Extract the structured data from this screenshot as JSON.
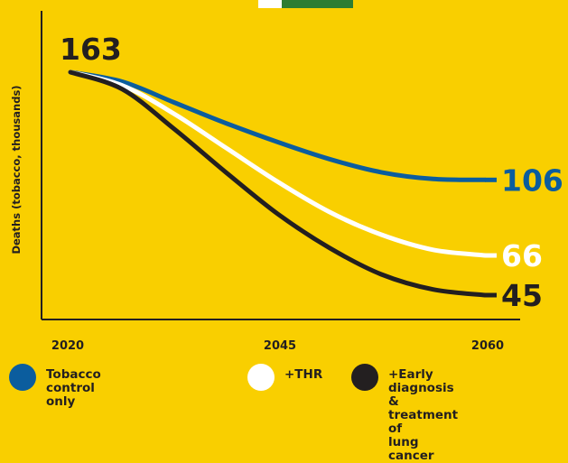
{
  "colors": {
    "background": "#F9CF00",
    "tobacco_control": "#0B5D9E",
    "thr": "#FFFFFF",
    "early_diagnosis": "#231F20",
    "flag_green": "#2E7D32",
    "flag_white": "#FFFFFF"
  },
  "chart_data": {
    "type": "line",
    "title": "",
    "xlabel": "",
    "ylabel": "Deaths (tobacco, thousands)",
    "x_ticks": [
      "2020",
      "2045",
      "2060"
    ],
    "xlim": [
      2020,
      2060
    ],
    "ylim": [
      0,
      185
    ],
    "grid": false,
    "legend_position": "bottom",
    "start_label": "163",
    "series": [
      {
        "name": "Tobacco control only",
        "color": "#0B5D9E",
        "points": [
          [
            2020,
            163
          ],
          [
            2025,
            158
          ],
          [
            2030,
            147
          ],
          [
            2035,
            136
          ],
          [
            2040,
            126
          ],
          [
            2045,
            117
          ],
          [
            2050,
            110
          ],
          [
            2055,
            106.5
          ],
          [
            2060,
            106
          ]
        ],
        "end_label": "106"
      },
      {
        "name": "+THR",
        "color": "#FFFFFF",
        "points": [
          [
            2020,
            163
          ],
          [
            2025,
            156
          ],
          [
            2030,
            141
          ],
          [
            2035,
            123
          ],
          [
            2040,
            105
          ],
          [
            2045,
            89
          ],
          [
            2050,
            77
          ],
          [
            2055,
            69
          ],
          [
            2060,
            66
          ]
        ],
        "end_label": "66"
      },
      {
        "name": "+Early diagnosis & treatment of lung cancer",
        "color": "#231F20",
        "points": [
          [
            2020,
            163
          ],
          [
            2025,
            154
          ],
          [
            2030,
            133
          ],
          [
            2035,
            110
          ],
          [
            2040,
            88
          ],
          [
            2045,
            70
          ],
          [
            2050,
            56
          ],
          [
            2055,
            48
          ],
          [
            2060,
            45
          ]
        ],
        "end_label": "45"
      }
    ]
  },
  "legend": {
    "items": [
      {
        "label": "Tobacco control only",
        "color": "#0B5D9E"
      },
      {
        "label": "+THR",
        "color": "#FFFFFF"
      },
      {
        "label": "+Early diagnosis\n& treatment of\nlung cancer",
        "color": "#231F20"
      }
    ]
  }
}
